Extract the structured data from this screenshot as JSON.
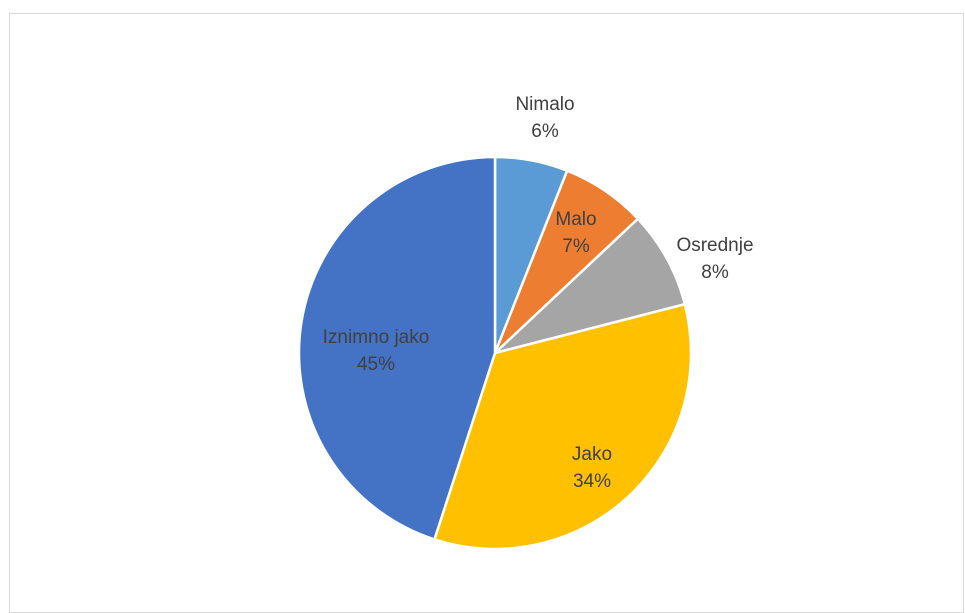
{
  "chart_data": {
    "type": "pie",
    "slices": [
      {
        "name": "Nimalo",
        "value": 6,
        "label": "6%",
        "color": "#5b9bd5"
      },
      {
        "name": "Malo",
        "value": 7,
        "label": "7%",
        "color": "#ed7d31"
      },
      {
        "name": "Osrednje",
        "value": 8,
        "label": "8%",
        "color": "#a5a5a5"
      },
      {
        "name": "Jako",
        "value": 34,
        "label": "34%",
        "color": "#ffc000"
      },
      {
        "name": "Iznimno jako",
        "value": 45,
        "label": "45%",
        "color": "#4472c4"
      }
    ],
    "start": "12 o'clock, clockwise",
    "legend": "none"
  }
}
